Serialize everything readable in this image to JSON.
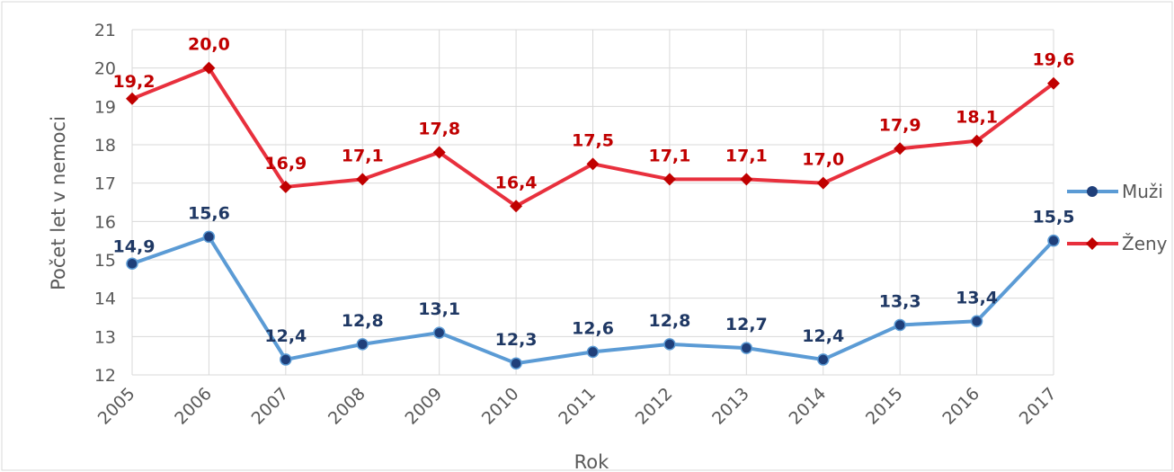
{
  "chart_data": {
    "type": "line",
    "title": "",
    "xlabel": "Rok",
    "ylabel": "Počet let v nemoci",
    "ylim": [
      12,
      21
    ],
    "y_ticks": [
      12,
      13,
      14,
      15,
      16,
      17,
      18,
      19,
      20,
      21
    ],
    "grid": true,
    "legend_position": "right",
    "categories": [
      "2005",
      "2006",
      "2007",
      "2008",
      "2009",
      "2010",
      "2011",
      "2012",
      "2013",
      "2014",
      "2015",
      "2016",
      "2017"
    ],
    "series": [
      {
        "name": "Muži",
        "color": "#5b9bd5",
        "marker_color": "#1f3f7a",
        "label_color": "#1f3864",
        "values": [
          14.9,
          15.6,
          12.4,
          12.8,
          13.1,
          12.3,
          12.6,
          12.8,
          12.7,
          12.4,
          13.3,
          13.4,
          15.5
        ],
        "labels": [
          "14,9",
          "15,6",
          "12,4",
          "12,8",
          "13,1",
          "12,3",
          "12,6",
          "12,8",
          "12,7",
          "12,4",
          "13,3",
          "13,4",
          "15,5"
        ]
      },
      {
        "name": "Ženy",
        "color": "#e8303d",
        "marker_color": "#c00000",
        "label_color": "#c00000",
        "values": [
          19.2,
          20.0,
          16.9,
          17.1,
          17.8,
          16.4,
          17.5,
          17.1,
          17.1,
          17.0,
          17.9,
          18.1,
          19.6
        ],
        "labels": [
          "19,2",
          "20,0",
          "16,9",
          "17,1",
          "17,8",
          "16,4",
          "17,5",
          "17,1",
          "17,1",
          "17,0",
          "17,9",
          "18,1",
          "19,6"
        ]
      }
    ]
  }
}
